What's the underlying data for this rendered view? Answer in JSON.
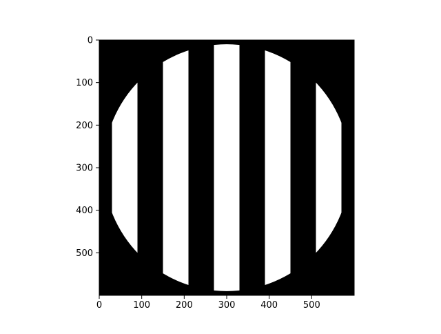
{
  "chart_data": {
    "type": "heatmap",
    "description_kind": "binary-image",
    "image_size": [
      600,
      600
    ],
    "xlim": [
      0,
      600
    ],
    "ylim": [
      600,
      0
    ],
    "x_ticks": [
      0,
      100,
      200,
      300,
      400,
      500
    ],
    "y_ticks": [
      0,
      100,
      200,
      300,
      400,
      500
    ],
    "x_tick_labels": [
      "0",
      "100",
      "200",
      "300",
      "400",
      "500"
    ],
    "y_tick_labels": [
      "0",
      "100",
      "200",
      "300",
      "400",
      "500"
    ],
    "title": "",
    "xlabel": "",
    "ylabel": "",
    "values": {
      "background": 0,
      "foreground": 1,
      "mask": {
        "shape": "circle",
        "center": [
          300,
          300
        ],
        "radius": 290
      },
      "white_stripes_x_ranges": [
        [
          30,
          90
        ],
        [
          150,
          210
        ],
        [
          270,
          330
        ],
        [
          390,
          450
        ],
        [
          510,
          570
        ]
      ]
    },
    "colors": {
      "background": "#000000",
      "foreground": "#ffffff"
    },
    "grid": false,
    "legend": "none"
  }
}
